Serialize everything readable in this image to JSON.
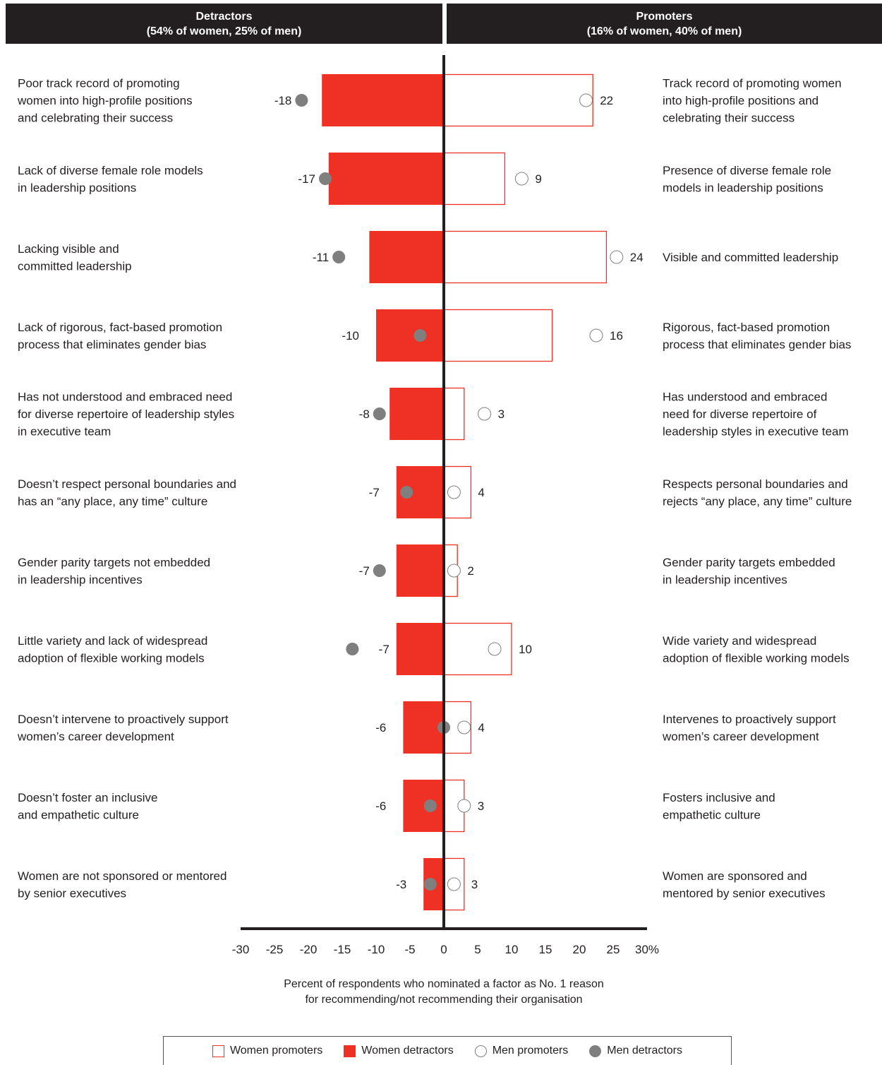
{
  "header": {
    "detractors_title": "Detractors",
    "detractors_sub": "(54% of women, 25% of men)",
    "promoters_title": "Promoters",
    "promoters_sub": "(16% of women, 40% of men)"
  },
  "chart_data": {
    "type": "bar",
    "orientation": "horizontal-diverging",
    "xlabel": "Percent of respondents who nominated a factor as No. 1 reason for recommending/not recommending their organisation",
    "xlabel_lines": [
      "Percent of respondents who nominated a factor as No. 1 reason",
      "for recommending/not recommending their organisation"
    ],
    "xlim": [
      -30,
      30
    ],
    "xticks": [
      -30,
      -25,
      -20,
      -15,
      -10,
      -5,
      0,
      5,
      10,
      15,
      20,
      25,
      30
    ],
    "xtick_labels": [
      "-30",
      "-25",
      "-20",
      "-15",
      "-10",
      "-5",
      "0",
      "5",
      "10",
      "15",
      "20",
      "25",
      "30%"
    ],
    "categories": [
      {
        "detractor": [
          "Poor track record of promoting",
          "women into high-profile positions",
          "and celebrating their success"
        ],
        "promoter": [
          "Track record of promoting women",
          "into high-profile positions and",
          "celebrating their success"
        ]
      },
      {
        "detractor": [
          "Lack of diverse female role models",
          "in leadership positions"
        ],
        "promoter": [
          "Presence of diverse female role",
          "models in leadership positions"
        ]
      },
      {
        "detractor": [
          "Lacking visible and",
          "committed leadership"
        ],
        "promoter": [
          "Visible and committed leadership"
        ]
      },
      {
        "detractor": [
          "Lack of rigorous, fact-based promotion",
          "process that eliminates gender bias"
        ],
        "promoter": [
          "Rigorous, fact-based promotion",
          "process that eliminates gender bias"
        ]
      },
      {
        "detractor": [
          "Has not understood and embraced need",
          "for diverse repertoire of leadership styles",
          "in executive team"
        ],
        "promoter": [
          "Has understood and embraced",
          "need for diverse repertoire of",
          "leadership styles in executive team"
        ]
      },
      {
        "detractor": [
          "Doesn’t respect personal boundaries and",
          "has an “any place, any time” culture"
        ],
        "promoter": [
          "Respects personal boundaries and",
          "rejects “any place, any time” culture"
        ]
      },
      {
        "detractor": [
          "Gender parity targets not embedded",
          "in leadership incentives"
        ],
        "promoter": [
          "Gender parity targets embedded",
          "in leadership incentives"
        ]
      },
      {
        "detractor": [
          "Little variety and lack of widespread",
          "adoption of flexible working models"
        ],
        "promoter": [
          "Wide variety and widespread",
          "adoption of flexible working models"
        ]
      },
      {
        "detractor": [
          "Doesn’t intervene to proactively support",
          "women’s career development"
        ],
        "promoter": [
          "Intervenes to proactively support",
          "women’s career development"
        ]
      },
      {
        "detractor": [
          "Doesn’t foster an inclusive",
          "and empathetic culture"
        ],
        "promoter": [
          "Fosters inclusive and",
          "empathetic culture"
        ]
      },
      {
        "detractor": [
          "Women are not sponsored or mentored",
          "by senior executives"
        ],
        "promoter": [
          "Women are sponsored and",
          "mentored by senior executives"
        ]
      }
    ],
    "series": [
      {
        "name": "Women promoters",
        "values": [
          22,
          9,
          24,
          16,
          3,
          4,
          2,
          10,
          4,
          3,
          3
        ]
      },
      {
        "name": "Women detractors",
        "values": [
          -18,
          -17,
          -11,
          -10,
          -8,
          -7,
          -7,
          -7,
          -6,
          -6,
          -3
        ]
      },
      {
        "name": "Men promoters",
        "values": [
          21,
          11.5,
          25.5,
          22.5,
          6,
          1.5,
          1.5,
          7.5,
          3,
          3,
          1.5
        ]
      },
      {
        "name": "Men detractors",
        "values": [
          -21,
          -17.5,
          -15.5,
          -3.5,
          -9.5,
          -5.5,
          -9.5,
          -13.5,
          0,
          -2,
          -2
        ]
      }
    ],
    "colors": {
      "women_detractors": "#ee3124",
      "women_promoters_outline": "#ee3124",
      "men_detractors": "#7f7f7f",
      "men_promoters_outline": "#808080",
      "axis": "#231f20"
    },
    "legend": [
      "Women promoters",
      "Women detractors",
      "Men promoters",
      "Men detractors"
    ],
    "legend_position": "bottom"
  }
}
